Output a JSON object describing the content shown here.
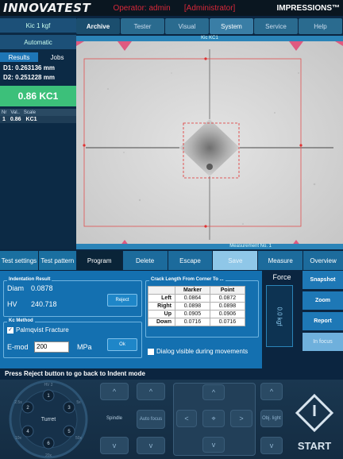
{
  "topbar": {
    "logo": "INNOVATEST",
    "operator": "Operator: admin",
    "role": "[Administrator]",
    "brand": "IMPRESSIONS™"
  },
  "nav": {
    "tabs": [
      "Archive",
      "Tester",
      "Visual",
      "System",
      "Service",
      "Help"
    ],
    "subtitle": "Kic KC1"
  },
  "left": {
    "load": "Kic 1 kgf",
    "mode": "Automatic",
    "tab_results": "Results",
    "tab_jobs": "Jobs",
    "d1": "D1: 0.263136 mm",
    "d2": "D2: 0.251228 mm",
    "kc": "0.86 KC1",
    "table_head": [
      "Nr",
      "Val..",
      "Scale"
    ],
    "row_nr": "1",
    "row_val": "0.86",
    "row_scale": "KC1"
  },
  "image": {
    "measurement_label": "Measurement No. 1"
  },
  "actions": {
    "test_settings": "Test settings",
    "test_pattern": "Test pattern",
    "program": "Program",
    "delete": "Delete",
    "escape": "Escape",
    "save": "Save",
    "measure": "Measure",
    "overview": "Overview"
  },
  "indentation": {
    "legend": "Indentation Result",
    "diam_label": "Diam",
    "diam_value": "0.0878",
    "hv_label": "HV",
    "hv_value": "240.718",
    "reject": "Reject"
  },
  "kc_method": {
    "legend": "Kc Method",
    "palmqvist": "Palmqvist Fracture",
    "emod_label": "E-mod",
    "emod_value": "200",
    "emod_unit": "MPa",
    "ok": "Ok"
  },
  "crack": {
    "legend": "Crack Length From Corner To ...",
    "headers": [
      "",
      "Marker",
      "Point"
    ],
    "rows": [
      {
        "label": "Left",
        "marker": "0.0864",
        "point": "0.0872"
      },
      {
        "label": "Right",
        "marker": "0.0898",
        "point": "0.0898"
      },
      {
        "label": "Up",
        "marker": "0.0905",
        "point": "0.0906"
      },
      {
        "label": "Down",
        "marker": "0.0716",
        "point": "0.0716"
      }
    ],
    "dialog_visible": "Dialog visible during movements"
  },
  "message": "Press Reject button to go back to Indent mode",
  "force": {
    "title": "Force",
    "value": "0.0 kgf"
  },
  "right_buttons": [
    "Snapshot",
    "Zoom",
    "Report",
    "In focus"
  ],
  "bottom": {
    "turret_label": "Turret",
    "turret_positions": [
      "1",
      "2",
      "3",
      "4",
      "5",
      "6"
    ],
    "ring_labels": [
      "HV 2",
      "2.5x",
      "20x",
      "5x",
      "10x",
      "50x"
    ],
    "spindle": "Spindle",
    "auto_focus": "Auto focus",
    "obj_light": "Obj. light",
    "start": "START"
  },
  "colors": {
    "accent": "#1e78b6",
    "kc_green": "#3cc07a",
    "operator_red": "#d8283a"
  }
}
